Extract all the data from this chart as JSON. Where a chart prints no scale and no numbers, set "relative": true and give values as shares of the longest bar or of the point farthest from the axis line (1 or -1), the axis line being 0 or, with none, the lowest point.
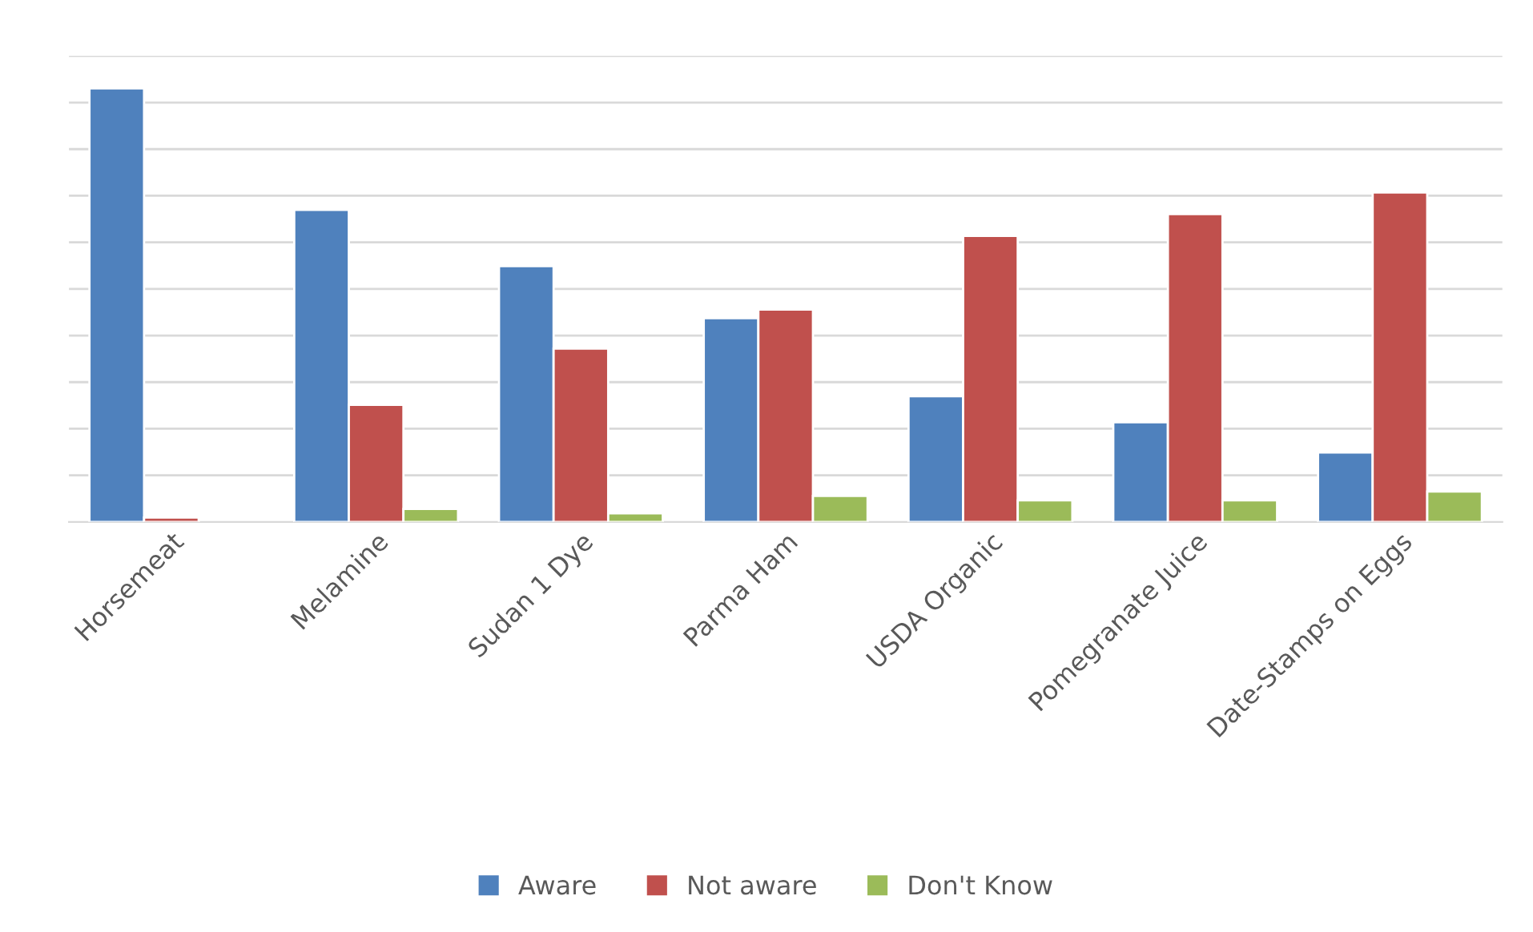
{
  "chart_data": {
    "type": "bar",
    "relative": true,
    "grid": "y",
    "legend": "bottom",
    "categories": [
      "Horsemeat",
      "Melamine",
      "Sudan 1 Dye",
      "Parma Ham",
      "USDA Organic",
      "Pomegranate Juice",
      "Date-Stamps on Eggs"
    ],
    "series": [
      {
        "name": "Aware",
        "color": "#4f81bd",
        "values": [
          1,
          0.72,
          0.59,
          0.47,
          0.29,
          0.23,
          0.16
        ]
      },
      {
        "name": "Not aware",
        "color": "#c0504d",
        "values": [
          0.01,
          0.27,
          0.4,
          0.49,
          0.66,
          0.71,
          0.76
        ]
      },
      {
        "name": "Don't Know",
        "color": "#9bbb59",
        "values": [
          null,
          0.03,
          0.02,
          0.06,
          0.05,
          0.05,
          0.07
        ]
      }
    ]
  }
}
